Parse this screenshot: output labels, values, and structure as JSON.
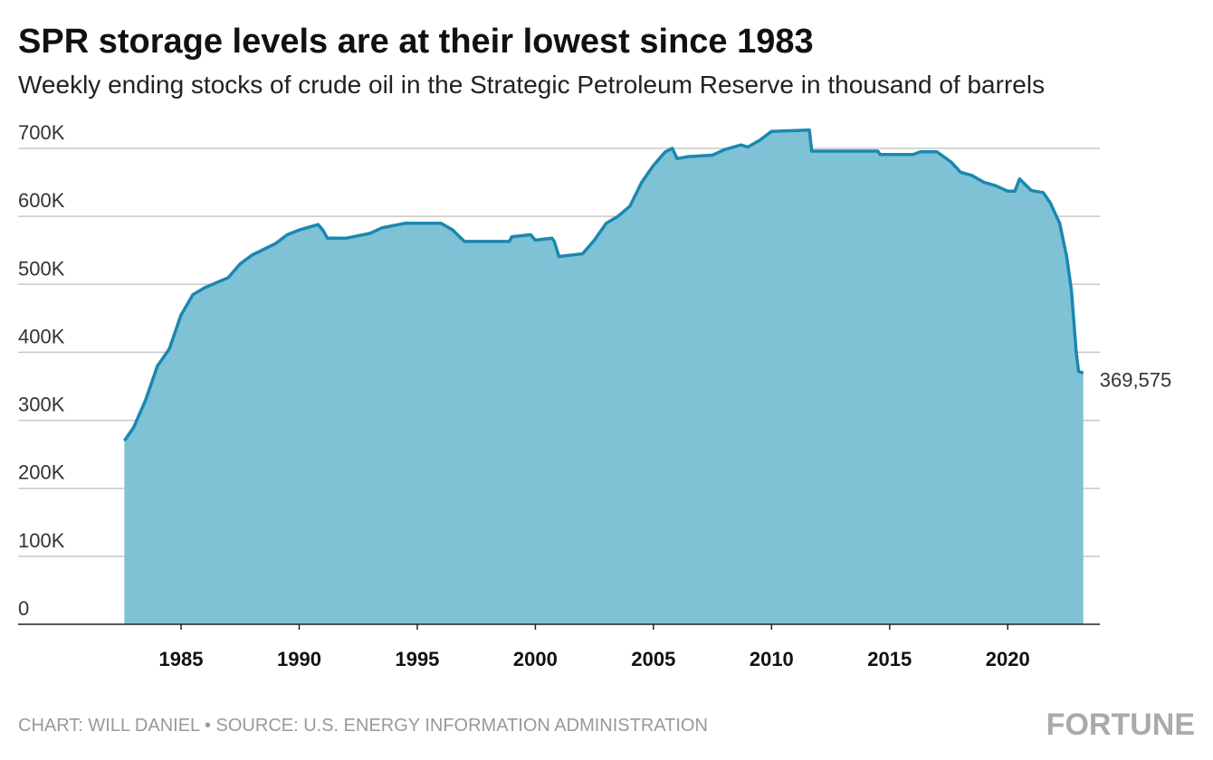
{
  "chart_data": {
    "type": "area",
    "title": "SPR storage levels are at their lowest since 1983",
    "subtitle": "Weekly ending stocks of crude oil in the Strategic Petroleum Reserve in thousand of barrels",
    "x": [
      1982.6,
      1983.0,
      1983.5,
      1984.0,
      1984.5,
      1985.0,
      1985.5,
      1986.0,
      1987.0,
      1987.5,
      1988.0,
      1989.0,
      1989.5,
      1990.0,
      1990.5,
      1990.8,
      1991.0,
      1991.2,
      1992.0,
      1993.0,
      1993.5,
      1994.5,
      1996.0,
      1996.5,
      1997.0,
      1998.0,
      1998.9,
      1999.0,
      1999.8,
      2000.0,
      2000.7,
      2000.8,
      2001.0,
      2002.0,
      2002.5,
      2003.0,
      2003.5,
      2004.0,
      2004.5,
      2005.0,
      2005.5,
      2005.8,
      2006.0,
      2006.5,
      2007.5,
      2008.0,
      2008.7,
      2009.0,
      2009.5,
      2010.0,
      2011.6,
      2011.7,
      2013.0,
      2014.5,
      2014.6,
      2016.0,
      2016.3,
      2017.0,
      2017.6,
      2018.0,
      2018.5,
      2019.0,
      2019.5,
      2020.0,
      2020.3,
      2020.5,
      2021.0,
      2021.5,
      2021.8,
      2022.2,
      2022.5,
      2022.7,
      2022.9,
      2023.0,
      2023.2
    ],
    "values": [
      270000,
      290000,
      330000,
      380000,
      405000,
      455000,
      485000,
      495000,
      510000,
      530000,
      543000,
      560000,
      573000,
      580000,
      585000,
      588000,
      580000,
      568000,
      568000,
      575000,
      583000,
      590000,
      590000,
      580000,
      563000,
      563000,
      563000,
      570000,
      573000,
      565000,
      568000,
      563000,
      541000,
      545000,
      565000,
      590000,
      600000,
      615000,
      650000,
      675000,
      695000,
      700000,
      685000,
      688000,
      690000,
      698000,
      705000,
      702000,
      712000,
      725000,
      727000,
      696000,
      696000,
      696000,
      691000,
      691000,
      695000,
      695000,
      680000,
      665000,
      660000,
      650000,
      645000,
      637000,
      637000,
      655000,
      638000,
      635000,
      620000,
      590000,
      540000,
      490000,
      400000,
      372000,
      369575
    ],
    "fill_color": "#7fc1d5",
    "line_color": "#1a88b0",
    "annotations": [
      {
        "text": "369,575"
      }
    ],
    "xlim": [
      1978.1,
      2023.9
    ],
    "xticks": [
      1985,
      1990,
      1995,
      2000,
      2005,
      2010,
      2015,
      2020
    ],
    "ylim": [
      0,
      700000
    ],
    "yticks": [
      0,
      {
        "value": 100000,
        "label": "100K"
      },
      {
        "value": 200000,
        "label": "200K"
      },
      {
        "value": 300000,
        "label": "300K"
      },
      {
        "value": 400000,
        "label": "400K"
      },
      {
        "value": 500000,
        "label": "500K"
      },
      {
        "value": 600000,
        "label": "600K"
      },
      {
        "value": 700000,
        "label": "700K"
      }
    ],
    "grid": true,
    "source": "CHART: WILL DANIEL • SOURCE: U.S. ENERGY INFORMATION ADMINISTRATION",
    "logo": "FORTUNE"
  }
}
